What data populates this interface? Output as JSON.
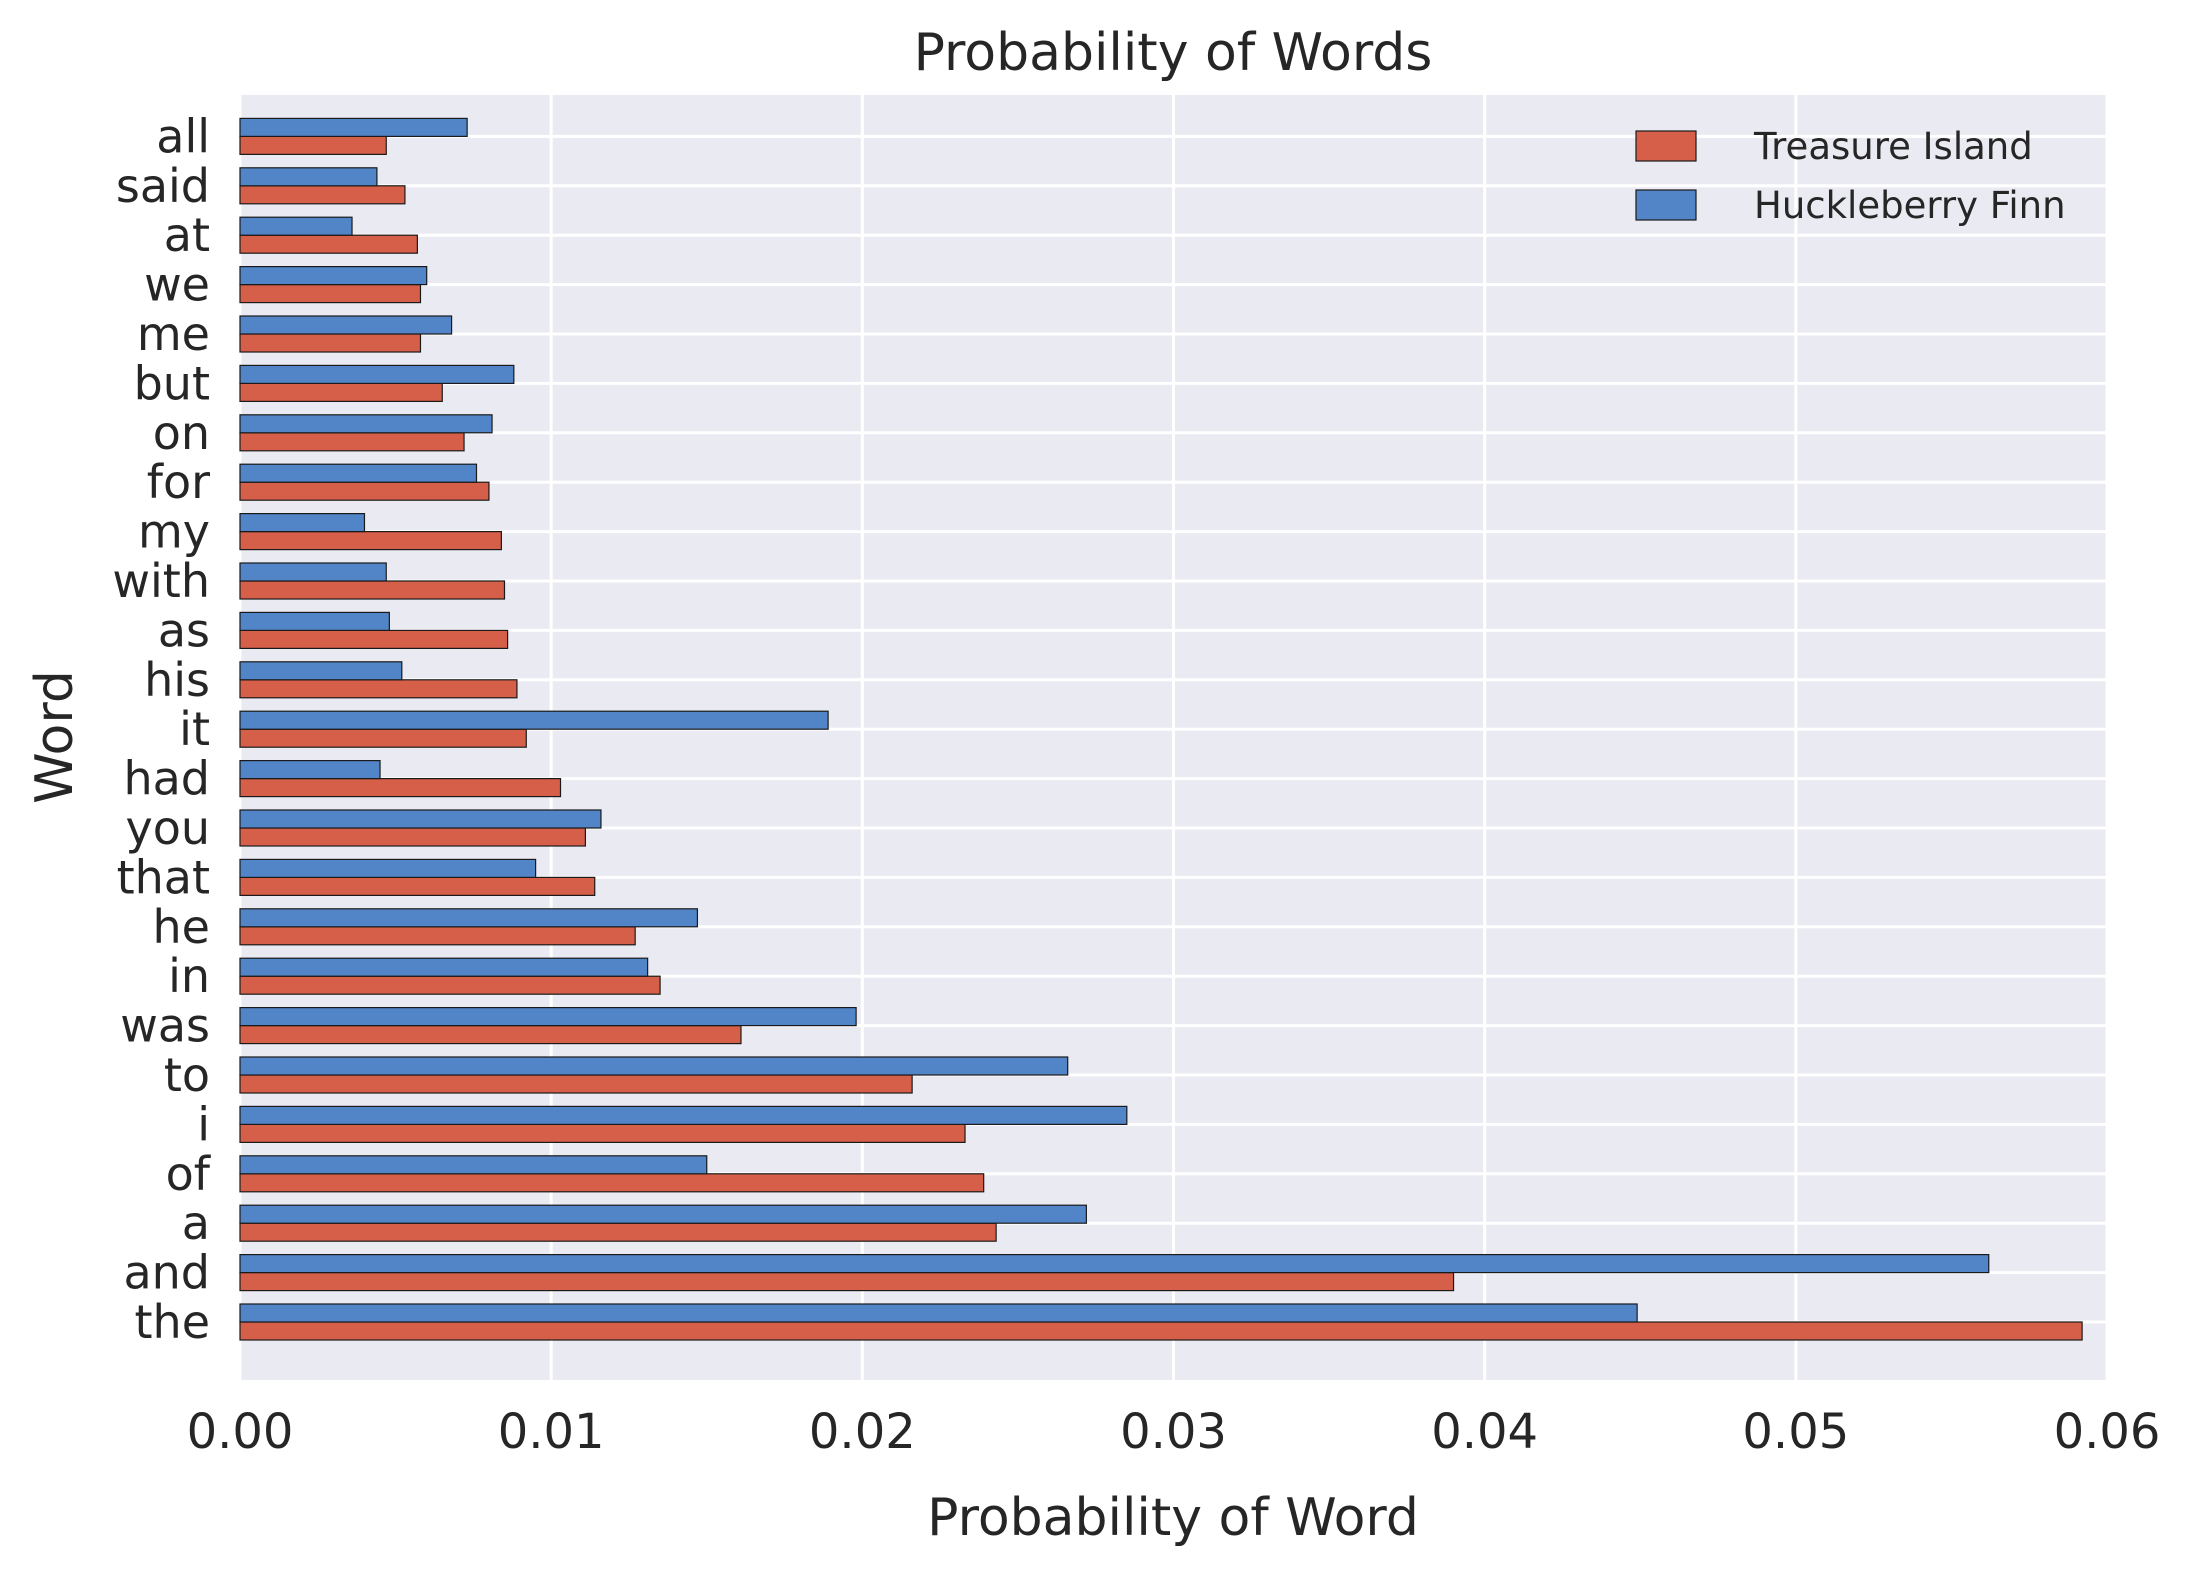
{
  "chart_data": {
    "type": "bar",
    "orientation": "horizontal",
    "title": "Probability of Words",
    "xlabel": "Probability of Word",
    "ylabel": "Word",
    "xlim": [
      0,
      0.06
    ],
    "xticks": [
      "0.00",
      "0.01",
      "0.02",
      "0.03",
      "0.04",
      "0.05",
      "0.06"
    ],
    "grid": true,
    "legend_position": "top-right",
    "categories": [
      "the",
      "and",
      "a",
      "of",
      "i",
      "to",
      "was",
      "in",
      "he",
      "that",
      "you",
      "had",
      "it",
      "his",
      "as",
      "with",
      "my",
      "for",
      "on",
      "but",
      "me",
      "we",
      "at",
      "said",
      "all"
    ],
    "series": [
      {
        "name": "Treasure Island",
        "color": "#d65f4a",
        "values": [
          0.0592,
          0.039,
          0.0243,
          0.0239,
          0.0233,
          0.0216,
          0.0161,
          0.0135,
          0.0127,
          0.0114,
          0.0111,
          0.0103,
          0.0092,
          0.0089,
          0.0086,
          0.0085,
          0.0084,
          0.008,
          0.0072,
          0.0065,
          0.0058,
          0.0058,
          0.0057,
          0.0053,
          0.0047
        ]
      },
      {
        "name": "Huckleberry Finn",
        "color": "#5285c8",
        "values": [
          0.0449,
          0.0562,
          0.0272,
          0.015,
          0.0285,
          0.0266,
          0.0198,
          0.0131,
          0.0147,
          0.0095,
          0.0116,
          0.0045,
          0.0189,
          0.0052,
          0.0048,
          0.0047,
          0.004,
          0.0076,
          0.0081,
          0.0088,
          0.0068,
          0.006,
          0.0036,
          0.0044,
          0.0073
        ]
      }
    ]
  }
}
